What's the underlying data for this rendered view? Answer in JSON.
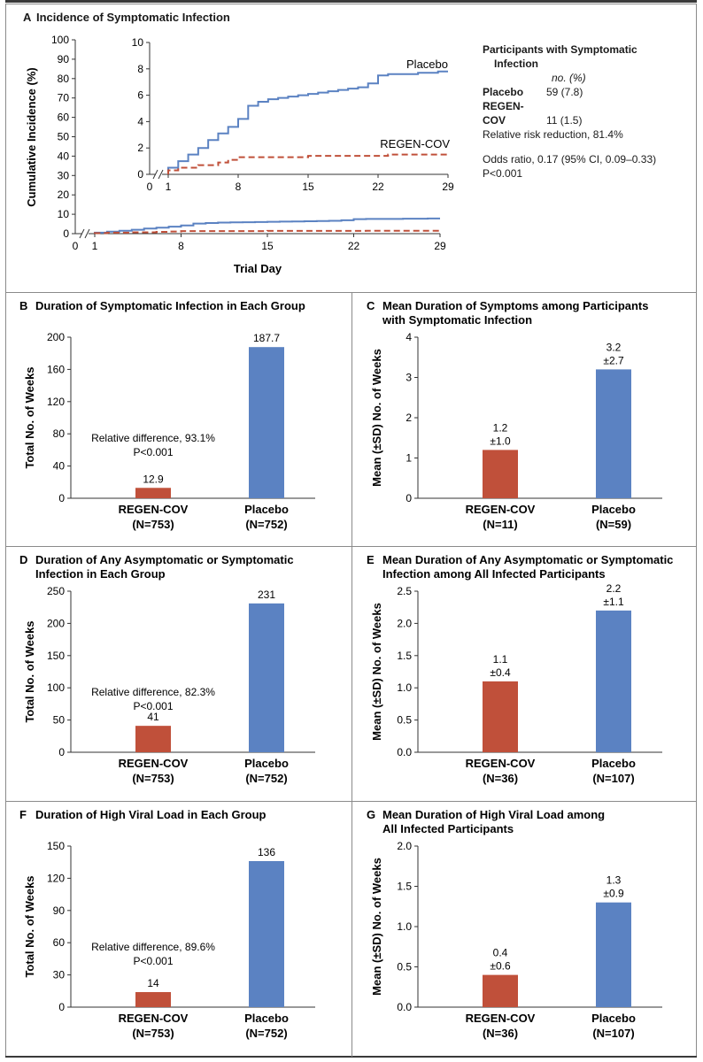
{
  "colors": {
    "regen": "#c0503a",
    "placebo": "#5b82c2",
    "axis": "#333333"
  },
  "panelA": {
    "letter": "A",
    "title": "Incidence of Symptomatic Infection",
    "legend": {
      "heading1": "Participants with Symptomatic",
      "heading2": "Infection",
      "col_header": "no. (%)",
      "placebo_label": "Placebo",
      "placebo_value": "59 (7.8)",
      "regen_label": "REGEN-COV",
      "regen_value": "11 (1.5)",
      "rrr": "Relative risk reduction, 81.4%",
      "odds": "Odds ratio, 0.17 (95% CI, 0.09–0.33)",
      "p": "P<0.001"
    }
  },
  "chart_data": [
    {
      "id": "A",
      "type": "line",
      "title": "Incidence of Symptomatic Infection",
      "xlabel": "Trial Day",
      "ylabel": "Cumulative Incidence (%)",
      "xlim": [
        0,
        29
      ],
      "ylim": [
        0,
        100
      ],
      "xticks": [
        "0",
        "1",
        "8",
        "15",
        "22",
        "29"
      ],
      "yticks": [
        "0",
        "10",
        "20",
        "30",
        "40",
        "50",
        "60",
        "70",
        "80",
        "90",
        "100"
      ],
      "series": [
        {
          "name": "Placebo",
          "x": [
            1,
            2,
            3,
            4,
            5,
            6,
            7,
            8,
            9,
            10,
            11,
            12,
            13,
            14,
            15,
            16,
            17,
            18,
            19,
            20,
            21,
            22,
            23,
            24,
            25,
            26,
            27,
            28,
            29
          ],
          "y": [
            0.5,
            1.0,
            1.5,
            2.0,
            2.6,
            3.1,
            3.6,
            4.2,
            5.2,
            5.5,
            5.7,
            5.8,
            5.9,
            6.0,
            6.1,
            6.2,
            6.3,
            6.4,
            6.5,
            6.6,
            6.9,
            7.5,
            7.6,
            7.6,
            7.6,
            7.7,
            7.7,
            7.8,
            7.8
          ]
        },
        {
          "name": "REGEN-COV",
          "x": [
            1,
            2,
            3,
            4,
            5,
            6,
            7,
            8,
            9,
            10,
            11,
            12,
            13,
            14,
            15,
            16,
            17,
            18,
            19,
            20,
            21,
            22,
            23,
            24,
            25,
            26,
            27,
            28,
            29
          ],
          "y": [
            0.3,
            0.5,
            0.5,
            0.7,
            0.7,
            0.9,
            1.1,
            1.3,
            1.3,
            1.3,
            1.3,
            1.3,
            1.3,
            1.3,
            1.4,
            1.4,
            1.4,
            1.4,
            1.4,
            1.4,
            1.4,
            1.4,
            1.5,
            1.5,
            1.5,
            1.5,
            1.5,
            1.5,
            1.5
          ]
        }
      ],
      "inset": {
        "ylim": [
          0,
          10
        ],
        "yticks": [
          "0",
          "2",
          "4",
          "6",
          "8",
          "10"
        ],
        "xticks": [
          "0",
          "1",
          "8",
          "15",
          "22",
          "29"
        ]
      },
      "labels": {
        "placebo": "Placebo",
        "regen": "REGEN-COV"
      }
    },
    {
      "id": "B",
      "type": "bar",
      "letter": "B",
      "title": [
        "Duration of Symptomatic Infection in Each Group"
      ],
      "ylabel": "Total No. of Weeks",
      "ylim": [
        0,
        200
      ],
      "yticks": [
        0,
        40,
        80,
        120,
        160,
        200
      ],
      "categories": [
        [
          "REGEN-COV",
          "(N=753)"
        ],
        [
          "Placebo",
          "(N=752)"
        ]
      ],
      "values": [
        12.9,
        187.7
      ],
      "value_labels": [
        [
          "12.9"
        ],
        [
          "187.7"
        ]
      ],
      "annotation": [
        "Relative difference, 93.1%",
        "P<0.001"
      ]
    },
    {
      "id": "C",
      "type": "bar",
      "letter": "C",
      "title": [
        "Mean Duration of Symptoms among Participants",
        "with Symptomatic Infection"
      ],
      "ylabel": "Mean (±SD) No. of Weeks",
      "ylim": [
        0,
        4
      ],
      "yticks": [
        0,
        1,
        2,
        3,
        4
      ],
      "categories": [
        [
          "REGEN-COV",
          "(N=11)"
        ],
        [
          "Placebo",
          "(N=59)"
        ]
      ],
      "values": [
        1.2,
        3.2
      ],
      "value_labels": [
        [
          "1.2",
          "±1.0"
        ],
        [
          "3.2",
          "±2.7"
        ]
      ]
    },
    {
      "id": "D",
      "type": "bar",
      "letter": "D",
      "title": [
        "Duration of Any Asymptomatic or Symptomatic",
        "Infection in Each Group"
      ],
      "ylabel": "Total No. of Weeks",
      "ylim": [
        0,
        250
      ],
      "yticks": [
        0,
        50,
        100,
        150,
        200,
        250
      ],
      "categories": [
        [
          "REGEN-COV",
          "(N=753)"
        ],
        [
          "Placebo",
          "(N=752)"
        ]
      ],
      "values": [
        41,
        231
      ],
      "value_labels": [
        [
          "41"
        ],
        [
          "231"
        ]
      ],
      "annotation": [
        "Relative difference, 82.3%",
        "P<0.001"
      ]
    },
    {
      "id": "E",
      "type": "bar",
      "letter": "E",
      "title": [
        "Mean Duration of Any Asymptomatic or Symptomatic",
        "Infection among All Infected Participants"
      ],
      "ylabel": "Mean (±SD) No. of Weeks",
      "ylim": [
        0,
        2.5
      ],
      "yticks": [
        "0.0",
        "0.5",
        "1.0",
        "1.5",
        "2.0",
        "2.5"
      ],
      "categories": [
        [
          "REGEN-COV",
          "(N=36)"
        ],
        [
          "Placebo",
          "(N=107)"
        ]
      ],
      "values": [
        1.1,
        2.2
      ],
      "value_labels": [
        [
          "1.1",
          "±0.4"
        ],
        [
          "2.2",
          "±1.1"
        ]
      ]
    },
    {
      "id": "F",
      "type": "bar",
      "letter": "F",
      "title": [
        "Duration of High Viral Load in Each Group"
      ],
      "ylabel": "Total No. of Weeks",
      "ylim": [
        0,
        150
      ],
      "yticks": [
        0,
        30,
        60,
        90,
        120,
        150
      ],
      "categories": [
        [
          "REGEN-COV",
          "(N=753)"
        ],
        [
          "Placebo",
          "(N=752)"
        ]
      ],
      "values": [
        14,
        136
      ],
      "value_labels": [
        [
          "14"
        ],
        [
          "136"
        ]
      ],
      "annotation": [
        "Relative difference, 89.6%",
        "P<0.001"
      ]
    },
    {
      "id": "G",
      "type": "bar",
      "letter": "G",
      "title": [
        "Mean Duration of High Viral Load among",
        "All Infected Participants"
      ],
      "ylabel": "Mean (±SD) No. of Weeks",
      "ylim": [
        0,
        2.0
      ],
      "yticks": [
        "0.0",
        "0.5",
        "1.0",
        "1.5",
        "2.0"
      ],
      "categories": [
        [
          "REGEN-COV",
          "(N=36)"
        ],
        [
          "Placebo",
          "(N=107)"
        ]
      ],
      "values": [
        0.4,
        1.3
      ],
      "value_labels": [
        [
          "0.4",
          "±0.6"
        ],
        [
          "1.3",
          "±0.9"
        ]
      ]
    }
  ]
}
